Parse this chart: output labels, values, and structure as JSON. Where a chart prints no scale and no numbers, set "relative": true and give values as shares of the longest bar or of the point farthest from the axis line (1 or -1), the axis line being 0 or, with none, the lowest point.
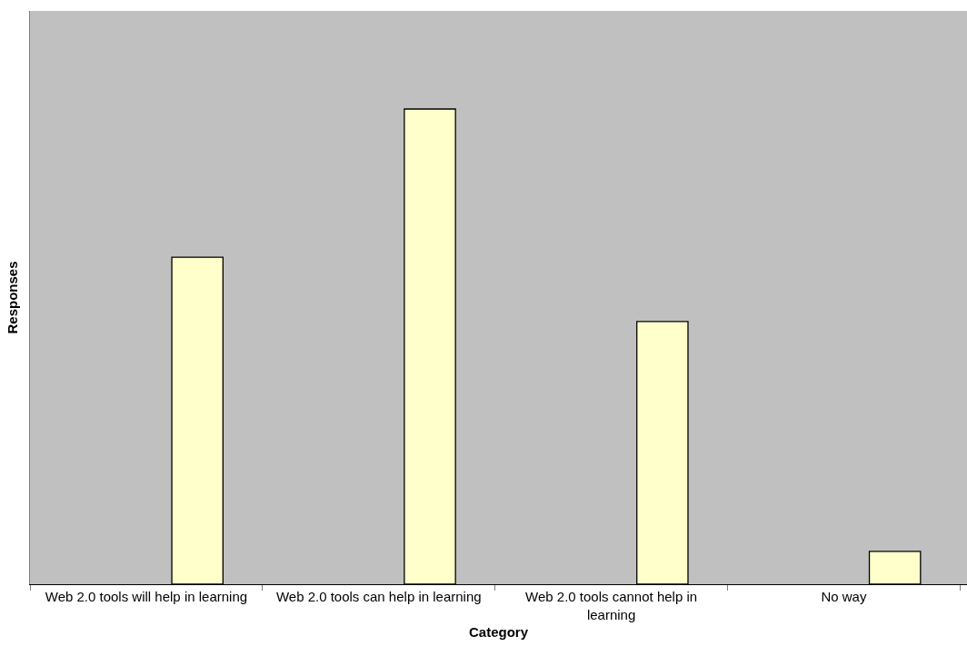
{
  "chart_data": {
    "type": "bar",
    "relative": true,
    "xlabel": "Category",
    "ylabel": "Responses",
    "categories": [
      "Web 2.0 tools will help in learning",
      "Web 2.0 tools can help in learning",
      "Web 2.0 tools cannot help in learning",
      "No way"
    ],
    "values": [
      0.688,
      1,
      0.553,
      0.069
    ],
    "color": "#ffffcc",
    "grid": false,
    "legend": false
  }
}
